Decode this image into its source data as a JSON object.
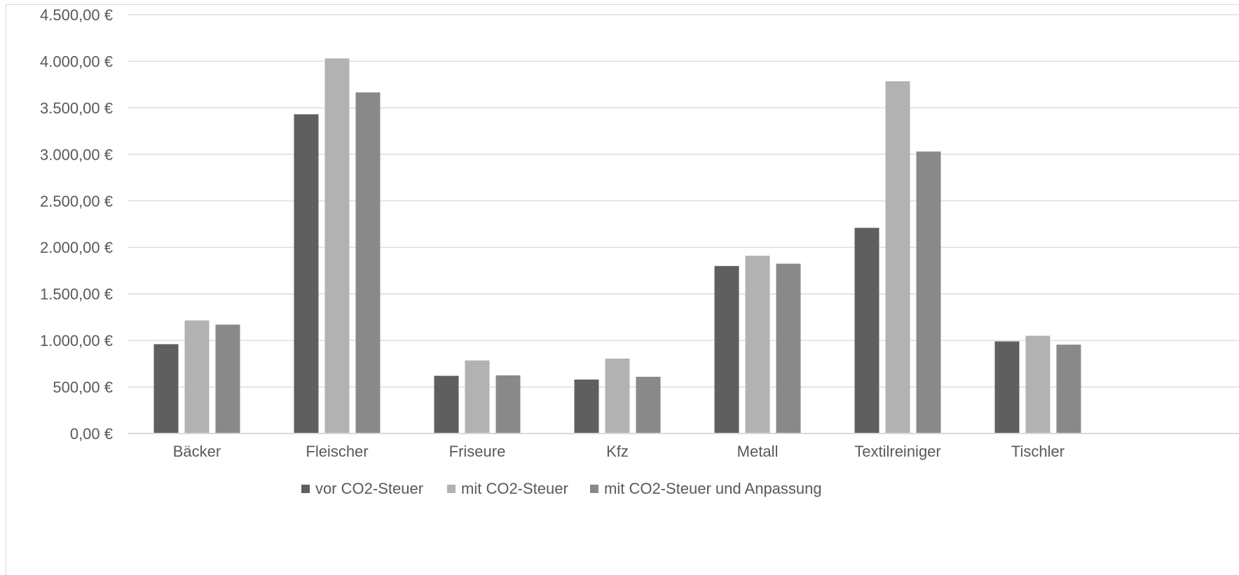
{
  "chart_data": {
    "type": "bar",
    "categories": [
      "Bäcker",
      "Fleischer",
      "Friseure",
      "Kfz",
      "Metall",
      "Textilreiniger",
      "Tischler"
    ],
    "series": [
      {
        "name": "vor CO2-Steuer",
        "color": "#5f5f5f",
        "values": [
          960,
          3430,
          620,
          580,
          1800,
          2210,
          990
        ]
      },
      {
        "name": "mit CO2-Steuer",
        "color": "#b2b2b2",
        "values": [
          1215,
          4030,
          785,
          805,
          1910,
          3785,
          1050
        ]
      },
      {
        "name": "mit CO2-Steuer und Anpassung",
        "color": "#898989",
        "values": [
          1170,
          3665,
          625,
          610,
          1825,
          3030,
          955
        ]
      }
    ],
    "y_ticks": [
      "0,00 €",
      "500,00 €",
      "1.000,00 €",
      "1.500,00 €",
      "2.000,00 €",
      "2.500,00 €",
      "3.000,00 €",
      "3.500,00 €",
      "4.000,00 €",
      "4.500,00 €"
    ],
    "ylim": [
      0,
      4500
    ],
    "grid": true,
    "legend_position": "bottom"
  }
}
